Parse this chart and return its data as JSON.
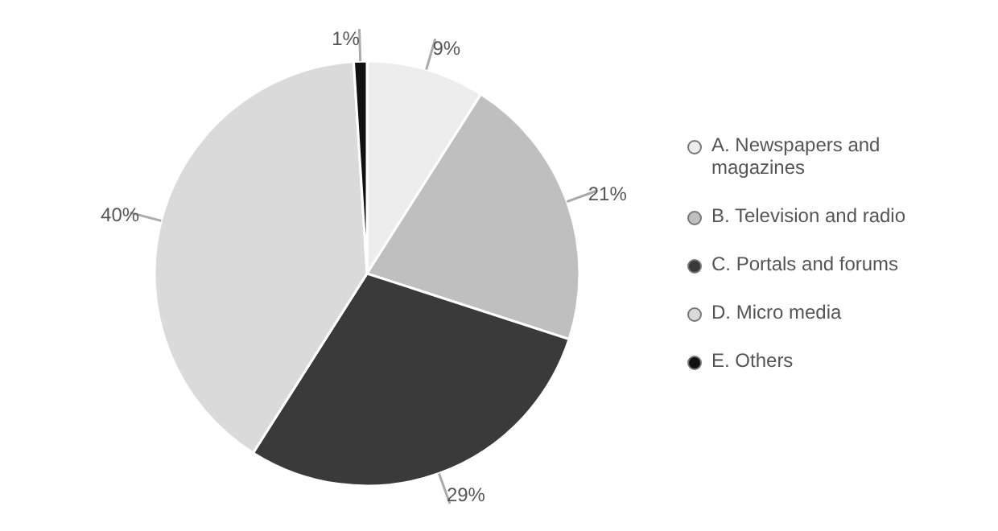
{
  "chart_data": {
    "type": "pie",
    "categories": [
      "A. Newspapers and magazines",
      "B. Television and radio",
      "C. Portals and forums",
      "D. Micro media",
      "E. Others"
    ],
    "values": [
      9,
      21,
      29,
      40,
      1
    ],
    "value_labels": [
      "9%",
      "21%",
      "29%",
      "40%",
      "1%"
    ],
    "colors": [
      "#ededed",
      "#bfbfbf",
      "#3a3a3a",
      "#dadada",
      "#111111"
    ],
    "legend": "right"
  }
}
